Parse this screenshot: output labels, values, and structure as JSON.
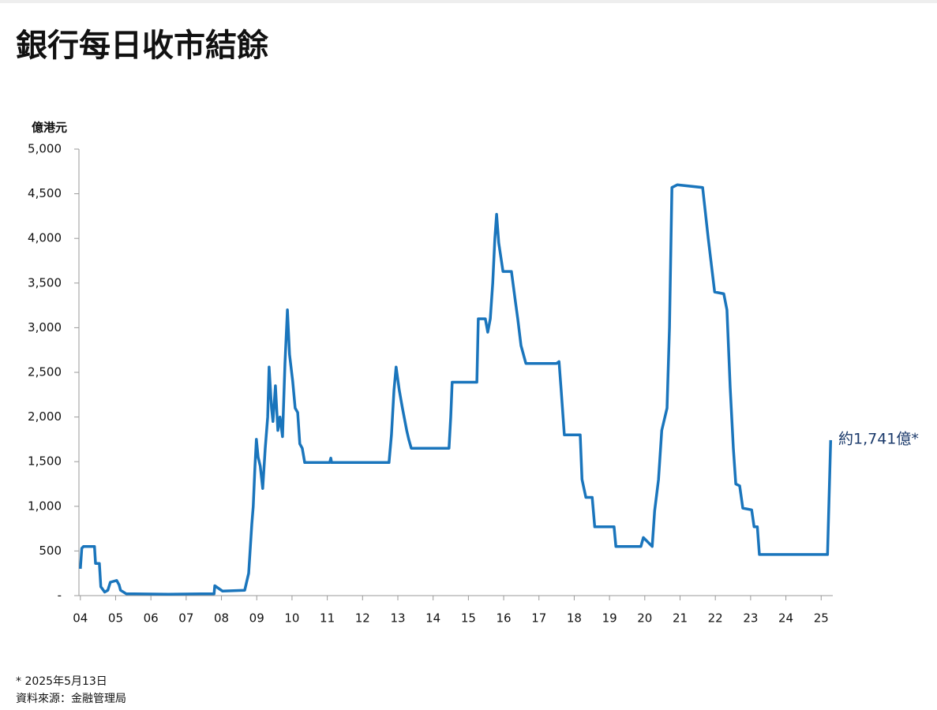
{
  "chart_data": {
    "type": "line",
    "title": "銀行每日收市結餘",
    "y_label": "億港元",
    "annotation": "約1,741億*",
    "footnote": "* 2025年5月13日",
    "source": "資料來源：金融管理局",
    "color": "#1a75bc",
    "grid": false,
    "xlim": [
      2003.96,
      2025.33
    ],
    "ylim": [
      0,
      5000
    ],
    "xticks": [
      {
        "value": 2004,
        "label": "04"
      },
      {
        "value": 2005,
        "label": "05"
      },
      {
        "value": 2006,
        "label": "06"
      },
      {
        "value": 2007,
        "label": "07"
      },
      {
        "value": 2008,
        "label": "08"
      },
      {
        "value": 2009,
        "label": "09"
      },
      {
        "value": 2010,
        "label": "10"
      },
      {
        "value": 2011,
        "label": "11"
      },
      {
        "value": 2012,
        "label": "12"
      },
      {
        "value": 2013,
        "label": "13"
      },
      {
        "value": 2014,
        "label": "14"
      },
      {
        "value": 2015,
        "label": "15"
      },
      {
        "value": 2016,
        "label": "16"
      },
      {
        "value": 2017,
        "label": "17"
      },
      {
        "value": 2018,
        "label": "18"
      },
      {
        "value": 2019,
        "label": "19"
      },
      {
        "value": 2020,
        "label": "20"
      },
      {
        "value": 2021,
        "label": "21"
      },
      {
        "value": 2022,
        "label": "22"
      },
      {
        "value": 2023,
        "label": "23"
      },
      {
        "value": 2024,
        "label": "24"
      },
      {
        "value": 2025,
        "label": "25"
      }
    ],
    "yticks": [
      {
        "value": 0,
        "label": "-"
      },
      {
        "value": 500,
        "label": "500"
      },
      {
        "value": 1000,
        "label": "1,000"
      },
      {
        "value": 1500,
        "label": "1,500"
      },
      {
        "value": 2000,
        "label": "2,000"
      },
      {
        "value": 2500,
        "label": "2,500"
      },
      {
        "value": 3000,
        "label": "3,000"
      },
      {
        "value": 3500,
        "label": "3,500"
      },
      {
        "value": 4000,
        "label": "4,000"
      },
      {
        "value": 4500,
        "label": "4,500"
      },
      {
        "value": 5000,
        "label": "5,000"
      }
    ],
    "x": [
      2004.0,
      2004.04,
      2004.09,
      2004.4,
      2004.43,
      2004.54,
      2004.58,
      2004.69,
      2004.78,
      2004.85,
      2005.03,
      2005.1,
      2005.14,
      2005.3,
      2005.52,
      2006.5,
      2007.5,
      2007.79,
      2007.81,
      2008.03,
      2008.66,
      2008.77,
      2008.86,
      2008.9,
      2008.95,
      2008.99,
      2009.04,
      2009.1,
      2009.17,
      2009.24,
      2009.31,
      2009.35,
      2009.42,
      2009.46,
      2009.53,
      2009.6,
      2009.66,
      2009.73,
      2009.8,
      2009.87,
      2009.93,
      2010.02,
      2010.09,
      2010.16,
      2010.22,
      2010.29,
      2010.36,
      2011.07,
      2011.1,
      2011.12,
      2012.75,
      2012.82,
      2012.89,
      2012.95,
      2013.04,
      2013.13,
      2013.25,
      2013.31,
      2013.38,
      2014.45,
      2014.5,
      2014.54,
      2015.24,
      2015.28,
      2015.48,
      2015.55,
      2015.62,
      2015.69,
      2015.75,
      2015.8,
      2015.86,
      2015.98,
      2016.22,
      2016.33,
      2016.4,
      2016.49,
      2016.63,
      2017.5,
      2017.57,
      2017.63,
      2017.72,
      2018.17,
      2018.22,
      2018.33,
      2018.51,
      2018.58,
      2019.13,
      2019.18,
      2019.89,
      2019.96,
      2020.21,
      2020.28,
      2020.39,
      2020.48,
      2020.63,
      2020.7,
      2020.77,
      2020.92,
      2021.64,
      2021.8,
      2021.98,
      2022.24,
      2022.33,
      2022.42,
      2022.51,
      2022.58,
      2022.69,
      2022.78,
      2023.03,
      2023.1,
      2023.19,
      2023.25,
      2025.18,
      2025.27
    ],
    "values": [
      300,
      530,
      550,
      550,
      360,
      360,
      100,
      40,
      60,
      150,
      170,
      120,
      60,
      20,
      20,
      15,
      20,
      20,
      110,
      50,
      60,
      250,
      800,
      1000,
      1450,
      1750,
      1550,
      1450,
      1200,
      1650,
      2000,
      2560,
      2100,
      1950,
      2350,
      1850,
      2000,
      1780,
      2600,
      3200,
      2700,
      2400,
      2100,
      2050,
      1700,
      1650,
      1490,
      1490,
      1540,
      1490,
      1490,
      1800,
      2300,
      2560,
      2300,
      2100,
      1850,
      1750,
      1650,
      1650,
      2000,
      2390,
      2390,
      3100,
      3100,
      2950,
      3100,
      3500,
      4000,
      4270,
      3950,
      3630,
      3630,
      3300,
      3100,
      2800,
      2600,
      2600,
      2620,
      2300,
      1800,
      1800,
      1300,
      1100,
      1100,
      770,
      770,
      550,
      550,
      650,
      550,
      950,
      1300,
      1850,
      2100,
      3000,
      4570,
      4600,
      4570,
      4000,
      3400,
      3380,
      3200,
      2330,
      1650,
      1250,
      1230,
      980,
      960,
      770,
      770,
      460,
      460,
      1741
    ]
  }
}
